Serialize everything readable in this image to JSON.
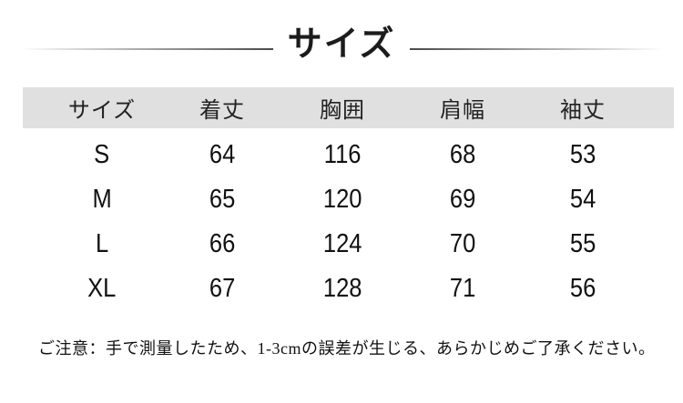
{
  "title": "サイズ",
  "note": "ご注意：手で測量したため、1-3cmの誤差が生じる、あらかじめご了承ください。",
  "colors": {
    "header_row_bg": "#e0e0e0",
    "text": "#111111",
    "decorative_line": "#4a4a4a",
    "background": "#ffffff"
  },
  "chart_data": {
    "type": "table",
    "title": "サイズ",
    "columns": [
      "サイズ",
      "着丈",
      "胸囲",
      "肩幅",
      "袖丈"
    ],
    "rows": [
      [
        "S",
        "64",
        "116",
        "68",
        "53"
      ],
      [
        "M",
        "65",
        "120",
        "69",
        "54"
      ],
      [
        "L",
        "66",
        "124",
        "70",
        "55"
      ],
      [
        "XL",
        "67",
        "128",
        "71",
        "56"
      ]
    ]
  }
}
